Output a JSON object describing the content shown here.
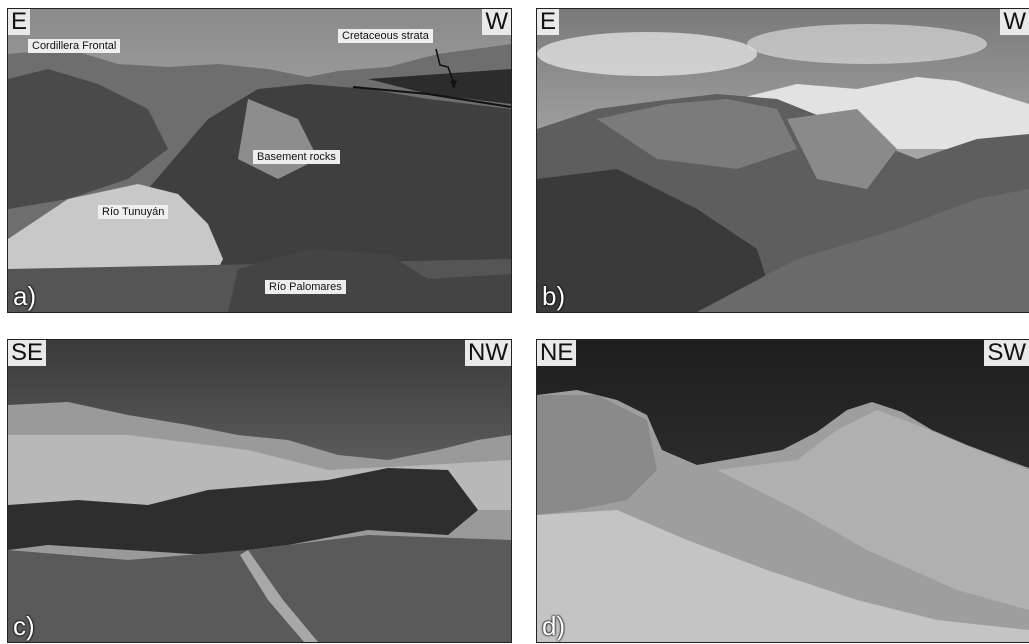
{
  "panels": {
    "a": {
      "panel_label": "a)",
      "left_orientation": "E",
      "right_orientation": "W",
      "annotations": {
        "cordillera": "Cordillera Frontal",
        "cretaceous": "Cretaceous strata",
        "basement": "Basement rocks",
        "tunuyan": "Río Tunuyán",
        "palomares": "Río Palomares"
      }
    },
    "b": {
      "panel_label": "b)",
      "left_orientation": "E",
      "right_orientation": "W"
    },
    "c": {
      "panel_label": "c)",
      "left_orientation": "SE",
      "right_orientation": "NW"
    },
    "d": {
      "panel_label": "d)",
      "left_orientation": "NE",
      "right_orientation": "SW"
    }
  }
}
